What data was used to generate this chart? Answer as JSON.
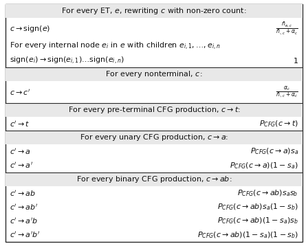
{
  "sections": [
    {
      "header": "For every ET, $e$, rewriting $c$ with non-zero count:",
      "rows": [
        {
          "left": "$c \\rightarrow \\mathrm{sign}(e)$",
          "right": "$\\frac{\\bar{n}_{e,c}}{\\bar{n}_{\\cdot,c}+\\alpha_c}$",
          "is_frac": true
        },
        {
          "left": "For every internal node $e_i$ in $e$ with children $e_{i,1},\\ldots,e_{i,n}$",
          "right": "",
          "is_frac": false
        },
        {
          "left": "$\\mathrm{sign}(e_i) \\rightarrow \\mathrm{sign}(e_{i,1})\\ldots\\mathrm{sign}(e_{i,n})$",
          "right": "$1$",
          "is_frac": false
        }
      ]
    },
    {
      "header": "For every nonterminal, $c$:",
      "rows": [
        {
          "left": "$c \\rightarrow c'$",
          "right": "$\\frac{\\alpha_c}{\\bar{n}_{\\cdot,c}+\\alpha_c}$",
          "is_frac": true
        }
      ]
    },
    {
      "header": "For every pre-terminal CFG production, $c \\rightarrow t$:",
      "rows": [
        {
          "left": "$c' \\rightarrow t$",
          "right": "$P_{CFG}(c \\rightarrow t)$",
          "is_frac": false
        }
      ]
    },
    {
      "header": "For every unary CFG production, $c \\rightarrow a$:",
      "rows": [
        {
          "left": "$c' \\rightarrow a$",
          "right": "$P_{CFG}(c \\rightarrow a)s_a$",
          "is_frac": false
        },
        {
          "left": "$c' \\rightarrow a'$",
          "right": "$P_{CFG}(c \\rightarrow a)(1 - s_a)$",
          "is_frac": false
        }
      ]
    },
    {
      "header": "For every binary CFG production, $c \\rightarrow ab$:",
      "rows": [
        {
          "left": "$c' \\rightarrow ab$",
          "right": "$P_{CFG}(c \\rightarrow ab)s_a s_b$",
          "is_frac": false
        },
        {
          "left": "$c' \\rightarrow ab'$",
          "right": "$P_{CFG}(c \\rightarrow ab)s_a(1 - s_b)$",
          "is_frac": false
        },
        {
          "left": "$c' \\rightarrow a'b$",
          "right": "$P_{CFG}(c \\rightarrow ab)(1 - s_a)s_b$",
          "is_frac": false
        },
        {
          "left": "$c' \\rightarrow a'b'$",
          "right": "$P_{CFG}(c \\rightarrow ab)(1 - s_a)(1 - s_b)$",
          "is_frac": false
        }
      ]
    }
  ],
  "header_bg": "#e8e8e8",
  "border_color": "#2a2a2a",
  "text_color": "#111111",
  "header_fontsize": 8.0,
  "row_fontsize": 8.0,
  "figsize": [
    4.48,
    3.58
  ],
  "dpi": 100
}
